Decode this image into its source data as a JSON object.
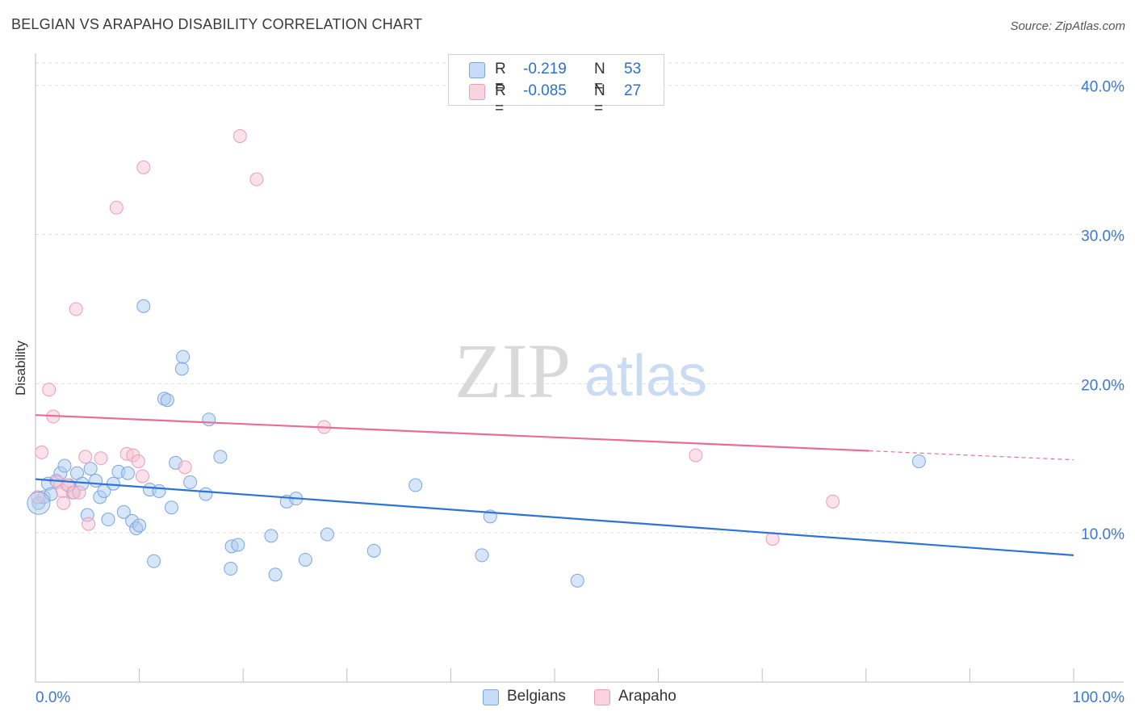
{
  "header": {
    "title": "BELGIAN VS ARAPAHO DISABILITY CORRELATION CHART",
    "source": "Source: ZipAtlas.com"
  },
  "legend": {
    "r_label": "R =",
    "n_label": "N =",
    "series": [
      {
        "r": "-0.219",
        "n": "53"
      },
      {
        "r": "-0.085",
        "n": "27"
      }
    ]
  },
  "watermark": {
    "zip": "ZIP",
    "atlas": "atlas"
  },
  "colors": {
    "blue_fill": "#aecbf0",
    "blue_stroke": "#7aa7e0",
    "blue_line": "#2d74d4",
    "pink_fill": "#f7c3d4",
    "pink_stroke": "#ec9db6",
    "pink_line": "#e76e96",
    "tick_label": "#3b78d0",
    "grid": "#dedede"
  },
  "chart_data": {
    "type": "scatter",
    "title": "BELGIAN VS ARAPAHO DISABILITY CORRELATION CHART",
    "xlabel": "",
    "ylabel": "Disability",
    "xlim": [
      0,
      100
    ],
    "ylim": [
      0,
      41.5
    ],
    "x_tick_labels": [
      "0.0%",
      "100.0%"
    ],
    "y_ticks": [
      10,
      20,
      30,
      40
    ],
    "y_tick_labels": [
      "10.0%",
      "20.0%",
      "30.0%",
      "40.0%"
    ],
    "grid": true,
    "legend_position": "top-center",
    "series": [
      {
        "name": "Belgians",
        "color": "#aecbf0",
        "r": -0.219,
        "n": 53,
        "trend": {
          "x": [
            0,
            100
          ],
          "y": [
            13.6,
            8.5
          ]
        },
        "points": [
          [
            0.3,
            12.0
          ],
          [
            0.8,
            12.4
          ],
          [
            1.2,
            13.3
          ],
          [
            1.5,
            12.6
          ],
          [
            2.0,
            13.5
          ],
          [
            2.4,
            14.0
          ],
          [
            2.8,
            14.5
          ],
          [
            3.2,
            13.2
          ],
          [
            3.6,
            12.7
          ],
          [
            4.0,
            14.0
          ],
          [
            4.5,
            13.3
          ],
          [
            5.0,
            11.2
          ],
          [
            5.3,
            14.3
          ],
          [
            5.8,
            13.5
          ],
          [
            6.2,
            12.4
          ],
          [
            6.6,
            12.8
          ],
          [
            7.0,
            10.9
          ],
          [
            7.5,
            13.3
          ],
          [
            8.0,
            14.1
          ],
          [
            8.5,
            11.4
          ],
          [
            8.9,
            14.0
          ],
          [
            9.3,
            10.8
          ],
          [
            9.7,
            10.3
          ],
          [
            10.0,
            10.5
          ],
          [
            10.4,
            25.2
          ],
          [
            11.0,
            12.9
          ],
          [
            11.4,
            8.1
          ],
          [
            11.9,
            12.8
          ],
          [
            12.4,
            19.0
          ],
          [
            12.7,
            18.9
          ],
          [
            13.1,
            11.7
          ],
          [
            13.5,
            14.7
          ],
          [
            14.1,
            21.0
          ],
          [
            14.2,
            21.8
          ],
          [
            14.9,
            13.4
          ],
          [
            16.4,
            12.6
          ],
          [
            16.7,
            17.6
          ],
          [
            17.8,
            15.1
          ],
          [
            18.8,
            7.6
          ],
          [
            18.9,
            9.1
          ],
          [
            19.5,
            9.2
          ],
          [
            22.7,
            9.8
          ],
          [
            23.1,
            7.2
          ],
          [
            24.2,
            12.1
          ],
          [
            25.1,
            12.3
          ],
          [
            26.0,
            8.2
          ],
          [
            28.1,
            9.9
          ],
          [
            32.6,
            8.8
          ],
          [
            36.6,
            13.2
          ],
          [
            43.0,
            8.5
          ],
          [
            43.8,
            11.1
          ],
          [
            52.2,
            6.8
          ],
          [
            85.1,
            14.8
          ]
        ]
      },
      {
        "name": "Arapaho",
        "color": "#f7c3d4",
        "r": -0.085,
        "n": 27,
        "trend": {
          "x": [
            0,
            80.3
          ],
          "y": [
            17.9,
            15.5
          ],
          "dashed_to": {
            "x": 100,
            "y": 14.9
          }
        },
        "points": [
          [
            0.2,
            12.4
          ],
          [
            0.6,
            15.4
          ],
          [
            1.3,
            19.6
          ],
          [
            1.7,
            17.8
          ],
          [
            2.1,
            13.4
          ],
          [
            2.6,
            12.8
          ],
          [
            2.7,
            12.0
          ],
          [
            3.1,
            13.2
          ],
          [
            3.7,
            12.7
          ],
          [
            4.2,
            12.7
          ],
          [
            3.9,
            25.0
          ],
          [
            4.8,
            15.1
          ],
          [
            5.1,
            10.6
          ],
          [
            6.3,
            15.0
          ],
          [
            7.8,
            31.8
          ],
          [
            8.8,
            15.3
          ],
          [
            9.4,
            15.2
          ],
          [
            9.9,
            14.8
          ],
          [
            10.3,
            13.8
          ],
          [
            10.4,
            34.5
          ],
          [
            14.4,
            14.4
          ],
          [
            19.7,
            36.6
          ],
          [
            21.3,
            33.7
          ],
          [
            27.8,
            17.1
          ],
          [
            63.6,
            15.2
          ],
          [
            71.0,
            9.6
          ],
          [
            76.8,
            12.1
          ]
        ]
      }
    ]
  }
}
